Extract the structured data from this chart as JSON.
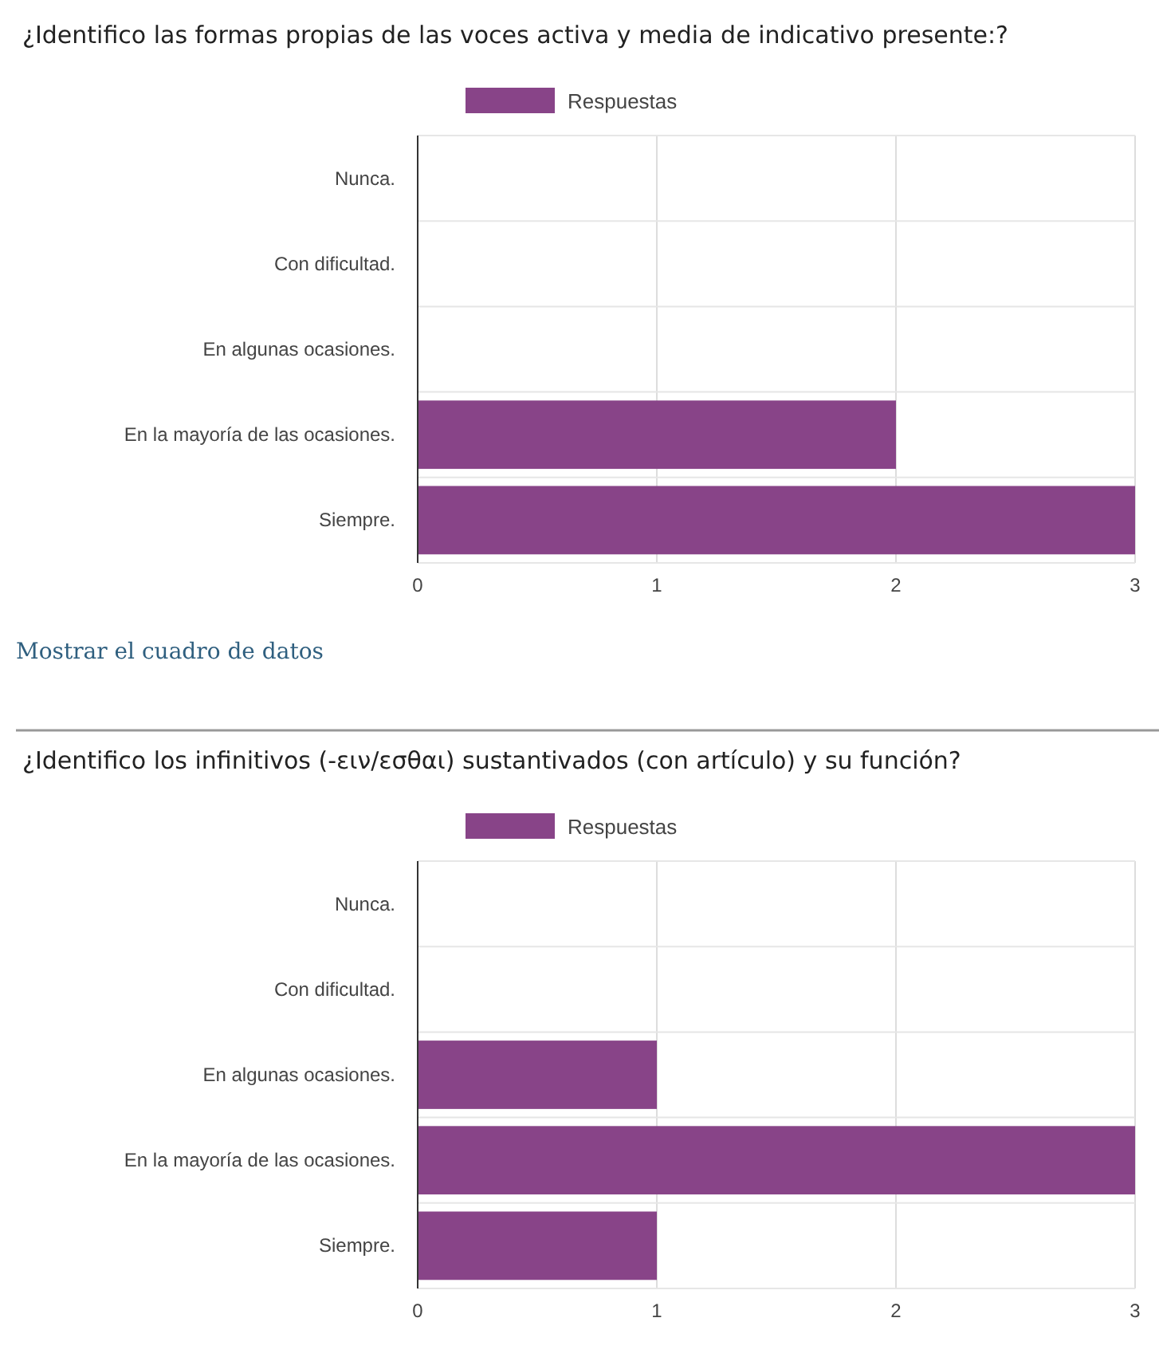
{
  "chart_data": [
    {
      "type": "bar",
      "orientation": "horizontal",
      "title": "¿Identifico las formas propias de las voces activa y media de indicativo presente:?",
      "categories": [
        "Nunca.",
        "Con dificultad.",
        "En algunas ocasiones.",
        "En la mayoría de las ocasiones.",
        "Siempre."
      ],
      "series": [
        {
          "name": "Respuestas",
          "color": "#884488",
          "values": [
            0,
            0,
            0,
            2,
            3
          ]
        }
      ],
      "xlim": [
        0,
        3
      ],
      "xticks": [
        0,
        1,
        2,
        3
      ],
      "grid": "x",
      "legend": "top",
      "annotations": [
        "Mostrar el cuadro de datos"
      ]
    },
    {
      "type": "bar",
      "orientation": "horizontal",
      "title": "¿Identifico los infinitivos (-ειν/εσθαι) sustantivados (con artículo) y su función?",
      "categories": [
        "Nunca.",
        "Con dificultad.",
        "En algunas ocasiones.",
        "En la mayoría de las ocasiones.",
        "Siempre."
      ],
      "series": [
        {
          "name": "Respuestas",
          "color": "#884488",
          "values": [
            0,
            0,
            1,
            3,
            1
          ]
        }
      ],
      "xlim": [
        0,
        3
      ],
      "xticks": [
        0,
        1,
        2,
        3
      ],
      "grid": "x",
      "legend": "top"
    }
  ]
}
